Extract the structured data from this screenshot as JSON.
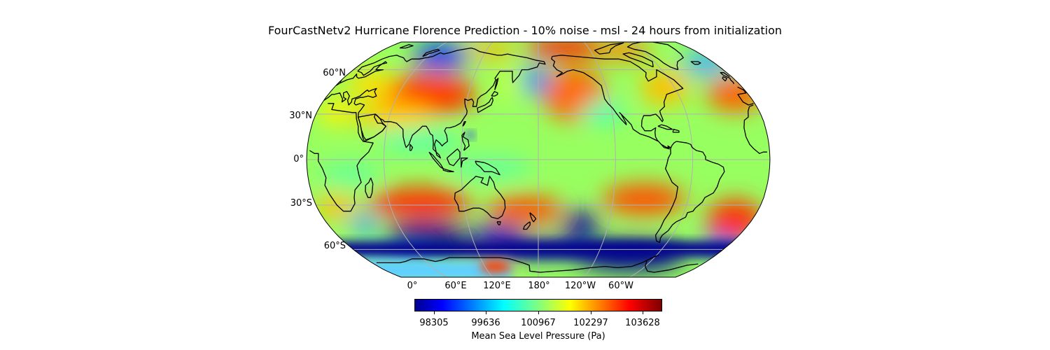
{
  "title": "FourCastNetv2 Hurricane Florence Prediction - 10% noise - msl - 24 hours from initialization",
  "latitude_labels": [
    "60°N",
    "30°N",
    "0°",
    "30°S",
    "60°S"
  ],
  "longitude_labels": [
    "0°",
    "60°E",
    "120°E",
    "180°",
    "120°W",
    "60°W"
  ],
  "colorbar": {
    "label": "Mean Sea Level Pressure (Pa)",
    "colormap": "jet",
    "tick_labels": [
      "98305",
      "99636",
      "100967",
      "102297",
      "103628"
    ],
    "range": [
      98000,
      103900
    ]
  },
  "map": {
    "projection": "Robinson",
    "central_longitude": "180°",
    "variable": "msl",
    "gridlines": true,
    "colors": {
      "low": "#00008f",
      "mid_low": "#00ffff",
      "mid": "#8cff70",
      "mid_high": "#ffff00",
      "high": "#ff0000",
      "max": "#7f0000"
    }
  }
}
